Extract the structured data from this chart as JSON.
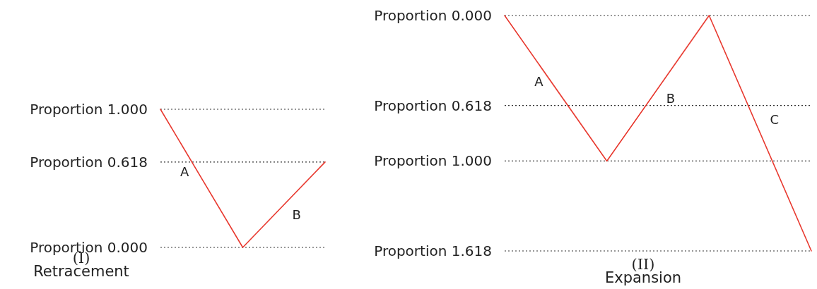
{
  "chart_data": [
    {
      "type": "line",
      "title": "(I)",
      "subtitle": "Retracement",
      "categories": [
        null,
        null,
        null
      ],
      "series": [
        {
          "color": "#e8392f",
          "values": [
            1.0,
            0.0,
            0.618
          ]
        }
      ],
      "ylim": [
        0,
        1
      ],
      "tick_labels": false,
      "marker": "none",
      "line_style": "solid",
      "ref_lines": [
        {
          "axis": "y",
          "value": 1,
          "label": "Proportion 1.000",
          "line_style": "dotted"
        },
        {
          "axis": "y",
          "value": 0.618,
          "label": "Proportion 0.618",
          "line_style": "dotted"
        },
        {
          "axis": "y",
          "value": 0,
          "label": "Proportion 0.000",
          "line_style": "dotted"
        }
      ],
      "annotations": [
        "A",
        "B"
      ]
    },
    {
      "type": "line",
      "title": "(II)",
      "subtitle": "Expansion",
      "categories": [
        null,
        null,
        null,
        null
      ],
      "series": [
        {
          "color": "#e8392f",
          "values": [
            0.0,
            1.0,
            0.0,
            1.618
          ]
        }
      ],
      "ylim": [
        1.618,
        0
      ],
      "tick_labels": false,
      "marker": "none",
      "line_style": "solid",
      "ref_lines": [
        {
          "axis": "y",
          "value": 0,
          "label": "Proportion 0.000",
          "line_style": "dotted"
        },
        {
          "axis": "y",
          "value": 0.618,
          "label": "Proportion 0.618",
          "line_style": "dotted"
        },
        {
          "axis": "y",
          "value": 1,
          "label": "Proportion 1.000",
          "line_style": "dotted"
        },
        {
          "axis": "y",
          "value": 1.618,
          "label": "Proportion 1.618",
          "line_style": "dotted"
        }
      ],
      "annotations": [
        "A",
        "B",
        "C"
      ]
    }
  ]
}
